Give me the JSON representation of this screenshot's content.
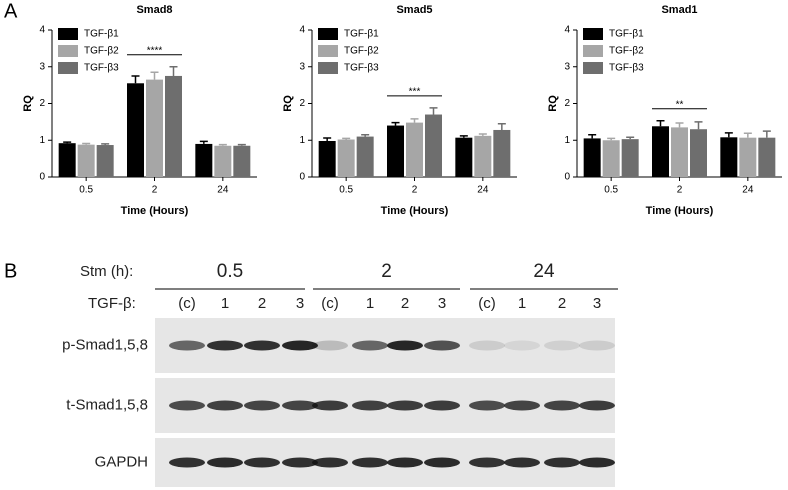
{
  "panel_labels": [
    "A",
    "B"
  ],
  "chart_data": [
    {
      "type": "bar",
      "title": "Smad8",
      "x_label": "Time (Hours)",
      "y_label": "RQ",
      "categories": [
        "0.5",
        "2",
        "24"
      ],
      "ylim": [
        0,
        4
      ],
      "yticks": [
        0,
        1,
        2,
        3,
        4
      ],
      "legend": "top-left",
      "annotation": "****",
      "series": [
        {
          "name": "TGF-β1",
          "color": "#000000",
          "values": [
            0.92,
            2.55,
            0.9
          ],
          "errors": [
            0.03,
            0.2,
            0.07
          ]
        },
        {
          "name": "TGF-β2",
          "color": "#a6a6a6",
          "values": [
            0.88,
            2.65,
            0.85
          ],
          "errors": [
            0.03,
            0.2,
            0.03
          ]
        },
        {
          "name": "TGF-β3",
          "color": "#6e6e6e",
          "values": [
            0.87,
            2.75,
            0.85
          ],
          "errors": [
            0.03,
            0.25,
            0.03
          ]
        }
      ]
    },
    {
      "type": "bar",
      "title": "Smad5",
      "x_label": "Time (Hours)",
      "y_label": "RQ",
      "categories": [
        "0.5",
        "2",
        "24"
      ],
      "ylim": [
        0,
        4
      ],
      "yticks": [
        0,
        1,
        2,
        3,
        4
      ],
      "legend": "top-left",
      "annotation": "***",
      "series": [
        {
          "name": "TGF-β1",
          "color": "#000000",
          "values": [
            0.98,
            1.4,
            1.07
          ],
          "errors": [
            0.08,
            0.08,
            0.05
          ]
        },
        {
          "name": "TGF-β2",
          "color": "#a6a6a6",
          "values": [
            1.02,
            1.48,
            1.12
          ],
          "errors": [
            0.03,
            0.1,
            0.05
          ]
        },
        {
          "name": "TGF-β3",
          "color": "#6e6e6e",
          "values": [
            1.1,
            1.7,
            1.28
          ],
          "errors": [
            0.05,
            0.18,
            0.17
          ]
        }
      ]
    },
    {
      "type": "bar",
      "title": "Smad1",
      "x_label": "Time (Hours)",
      "y_label": "RQ",
      "categories": [
        "0.5",
        "2",
        "24"
      ],
      "ylim": [
        0,
        4
      ],
      "yticks": [
        0,
        1,
        2,
        3,
        4
      ],
      "legend": "top-left",
      "annotation": "**",
      "series": [
        {
          "name": "TGF-β1",
          "color": "#000000",
          "values": [
            1.05,
            1.38,
            1.08
          ],
          "errors": [
            0.1,
            0.15,
            0.12
          ]
        },
        {
          "name": "TGF-β2",
          "color": "#a6a6a6",
          "values": [
            1.0,
            1.35,
            1.07
          ],
          "errors": [
            0.05,
            0.12,
            0.12
          ]
        },
        {
          "name": "TGF-β3",
          "color": "#6e6e6e",
          "values": [
            1.03,
            1.3,
            1.07
          ],
          "errors": [
            0.05,
            0.2,
            0.18
          ]
        }
      ]
    }
  ],
  "blot": {
    "stim_label": "Stm (h):",
    "groups": [
      "0.5",
      "2",
      "24"
    ],
    "tgf_label": "TGF-β:",
    "lanes": [
      "(c)",
      "1",
      "2",
      "3",
      "(c)",
      "1",
      "2",
      "3",
      "(c)",
      "1",
      "2",
      "3"
    ],
    "rows": [
      "p-Smad1,5,8",
      "t-Smad1,5,8",
      "GAPDH"
    ]
  }
}
